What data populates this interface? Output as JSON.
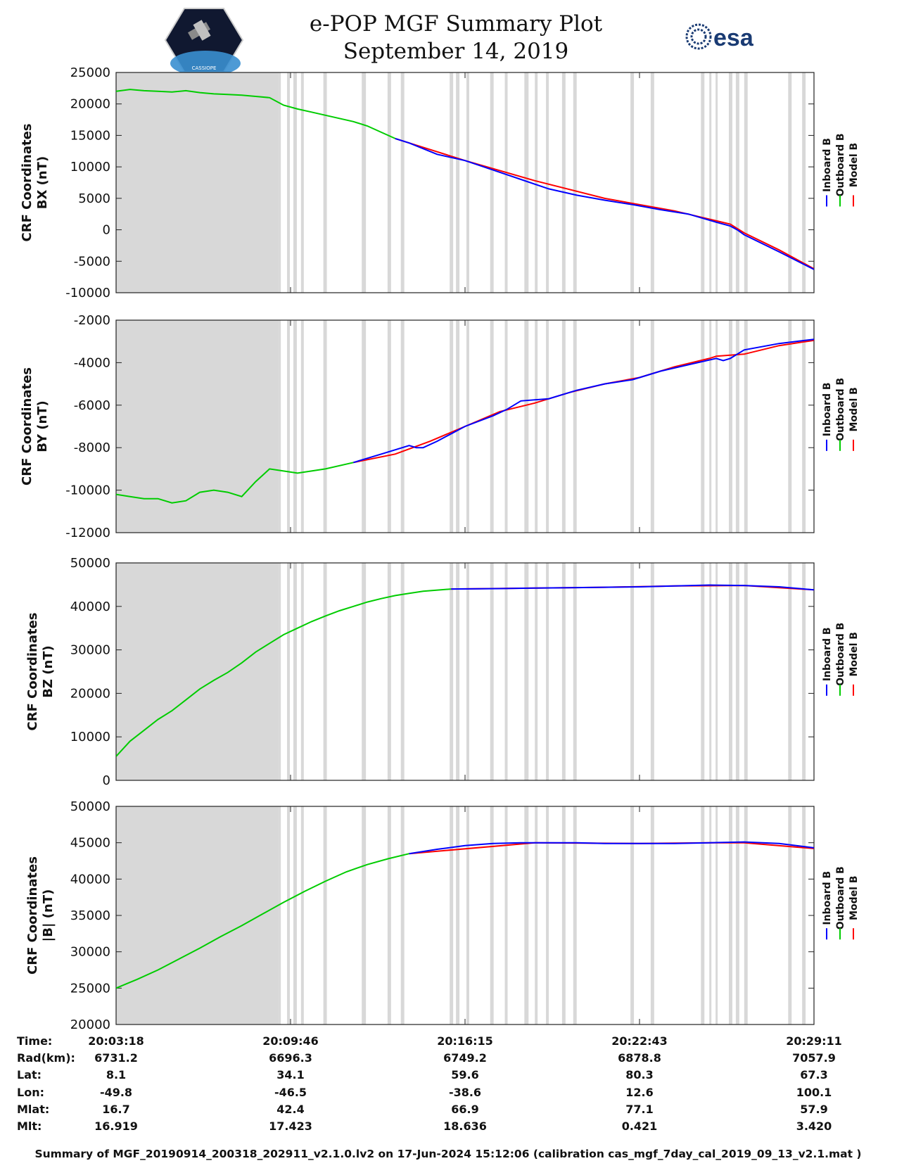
{
  "header": {
    "title_line1": "e-POP MGF Summary Plot",
    "title_line2": "September 14, 2019",
    "logo_left_text": "CASSIOPE",
    "logo_right_text": "esa"
  },
  "legend": {
    "labels": [
      "Inboard B",
      "Outboard B",
      "Model B"
    ],
    "colors": [
      "#0000ff",
      "#00cc00",
      "#ff0000"
    ]
  },
  "time_ticks": [
    "20:03:18",
    "20:09:46",
    "20:16:15",
    "20:22:43",
    "20:29:11"
  ],
  "gray_intervals": [
    [
      0,
      0.233
    ],
    [
      0.233,
      0.236
    ],
    [
      0.245,
      0.249
    ],
    [
      0.254,
      0.259
    ],
    [
      0.265,
      0.269
    ],
    [
      0.297,
      0.302
    ],
    [
      0.352,
      0.358
    ],
    [
      0.389,
      0.394
    ],
    [
      0.408,
      0.413
    ],
    [
      0.478,
      0.483
    ],
    [
      0.487,
      0.492
    ],
    [
      0.502,
      0.506
    ],
    [
      0.536,
      0.541
    ],
    [
      0.557,
      0.561
    ],
    [
      0.585,
      0.591
    ],
    [
      0.6,
      0.604
    ],
    [
      0.616,
      0.62
    ],
    [
      0.639,
      0.644
    ],
    [
      0.655,
      0.66
    ],
    [
      0.737,
      0.742
    ],
    [
      0.766,
      0.771
    ],
    [
      0.838,
      0.843
    ],
    [
      0.85,
      0.853
    ],
    [
      0.859,
      0.862
    ],
    [
      0.878,
      0.883
    ],
    [
      0.888,
      0.893
    ],
    [
      0.9,
      0.905
    ],
    [
      0.963,
      0.968
    ],
    [
      0.983,
      0.988
    ]
  ],
  "chart_data": [
    {
      "type": "line",
      "xlabel": "",
      "ylabel": "CRF Coordinates\nBX (nT)",
      "ylim": [
        -10000,
        25000
      ],
      "yticks": [
        "25000",
        "20000",
        "15000",
        "10000",
        "5000",
        "0",
        "-5000",
        "-10000"
      ],
      "series": [
        {
          "name": "Outboard B",
          "x_frac": [
            0,
            0.02,
            0.04,
            0.06,
            0.08,
            0.1,
            0.12,
            0.14,
            0.16,
            0.18,
            0.2,
            0.22,
            0.24,
            0.26,
            0.28,
            0.3,
            0.32,
            0.34,
            0.36,
            0.38,
            0.4
          ],
          "values": [
            22000,
            22300,
            22100,
            22000,
            21900,
            22100,
            21800,
            21600,
            21500,
            21400,
            21200,
            21000,
            19800,
            19200,
            18700,
            18200,
            17700,
            17200,
            16500,
            15500,
            14500
          ]
        },
        {
          "name": "Model B",
          "x_frac": [
            0.4,
            0.5,
            0.6,
            0.7,
            0.8,
            0.88,
            0.9,
            0.95,
            1.0
          ],
          "values": [
            14500,
            11000,
            7800,
            5000,
            3000,
            900,
            -500,
            -3200,
            -6200
          ]
        },
        {
          "name": "Inboard B",
          "x_frac": [
            0.4,
            0.42,
            0.46,
            0.5,
            0.54,
            0.58,
            0.62,
            0.66,
            0.7,
            0.74,
            0.78,
            0.82,
            0.86,
            0.88,
            0.89,
            0.9,
            0.95,
            1.0
          ],
          "values": [
            14500,
            13800,
            12000,
            11000,
            9500,
            8000,
            6500,
            5500,
            4700,
            4000,
            3200,
            2500,
            1200,
            600,
            0,
            -800,
            -3500,
            -6300
          ]
        }
      ]
    },
    {
      "type": "line",
      "xlabel": "",
      "ylabel": "CRF Coordinates\nBY (nT)",
      "ylim": [
        -12000,
        -2000
      ],
      "yticks": [
        "-2000",
        "-4000",
        "-6000",
        "-8000",
        "-10000",
        "-12000"
      ],
      "series": [
        {
          "name": "Outboard B",
          "x_frac": [
            0,
            0.02,
            0.04,
            0.06,
            0.08,
            0.1,
            0.12,
            0.14,
            0.16,
            0.18,
            0.2,
            0.22,
            0.24,
            0.26,
            0.28,
            0.3,
            0.34
          ],
          "values": [
            -10200,
            -10300,
            -10400,
            -10400,
            -10600,
            -10500,
            -10100,
            -10000,
            -10100,
            -10300,
            -9600,
            -9000,
            -9100,
            -9200,
            -9100,
            -9000,
            -8700
          ]
        },
        {
          "name": "Model B",
          "x_frac": [
            0.34,
            0.4,
            0.45,
            0.5,
            0.55,
            0.6,
            0.65,
            0.7,
            0.75,
            0.8,
            0.85,
            0.86,
            0.9,
            0.95,
            1.0
          ],
          "values": [
            -8700,
            -8300,
            -7700,
            -7000,
            -6300,
            -5900,
            -5400,
            -5000,
            -4700,
            -4200,
            -3800,
            -3700,
            -3600,
            -3200,
            -2950
          ]
        },
        {
          "name": "Inboard B",
          "x_frac": [
            0.34,
            0.38,
            0.42,
            0.43,
            0.44,
            0.46,
            0.5,
            0.54,
            0.56,
            0.58,
            0.62,
            0.66,
            0.7,
            0.74,
            0.78,
            0.82,
            0.86,
            0.87,
            0.88,
            0.9,
            0.95,
            1.0
          ],
          "values": [
            -8700,
            -8300,
            -7900,
            -8000,
            -8000,
            -7700,
            -7000,
            -6500,
            -6200,
            -5800,
            -5700,
            -5300,
            -5000,
            -4800,
            -4400,
            -4100,
            -3800,
            -3900,
            -3800,
            -3400,
            -3100,
            -2900
          ]
        }
      ]
    },
    {
      "type": "line",
      "xlabel": "",
      "ylabel": "CRF Coordinates\nBZ (nT)",
      "ylim": [
        0,
        50000
      ],
      "yticks": [
        "50000",
        "40000",
        "30000",
        "20000",
        "10000",
        "0"
      ],
      "series": [
        {
          "name": "Outboard B",
          "x_frac": [
            0,
            0.02,
            0.04,
            0.06,
            0.08,
            0.1,
            0.12,
            0.14,
            0.16,
            0.18,
            0.2,
            0.22,
            0.24,
            0.26,
            0.28,
            0.3,
            0.32,
            0.34,
            0.36,
            0.38,
            0.4,
            0.42,
            0.44,
            0.48
          ],
          "values": [
            5500,
            9000,
            11500,
            14000,
            16000,
            18500,
            21000,
            23000,
            24800,
            27000,
            29500,
            31500,
            33500,
            35000,
            36500,
            37800,
            39000,
            40000,
            41000,
            41800,
            42500,
            43000,
            43500,
            44000
          ]
        },
        {
          "name": "Model B",
          "x_frac": [
            0.48,
            0.6,
            0.7,
            0.8,
            0.9,
            1.0
          ],
          "values": [
            44000,
            44200,
            44400,
            44700,
            44800,
            43800
          ]
        },
        {
          "name": "Inboard B",
          "x_frac": [
            0.48,
            0.55,
            0.6,
            0.65,
            0.7,
            0.75,
            0.8,
            0.85,
            0.9,
            0.95,
            1.0
          ],
          "values": [
            44000,
            44100,
            44200,
            44300,
            44400,
            44500,
            44700,
            44900,
            44800,
            44500,
            43800
          ]
        }
      ]
    },
    {
      "type": "line",
      "xlabel": "",
      "ylabel": "CRF Coordinates\n|B| (nT)",
      "ylim": [
        20000,
        50000
      ],
      "yticks": [
        "50000",
        "45000",
        "40000",
        "35000",
        "30000",
        "25000",
        "20000"
      ],
      "series": [
        {
          "name": "Outboard B",
          "x_frac": [
            0,
            0.03,
            0.06,
            0.09,
            0.12,
            0.15,
            0.18,
            0.21,
            0.24,
            0.27,
            0.3,
            0.33,
            0.36,
            0.39,
            0.42
          ],
          "values": [
            25000,
            26200,
            27500,
            29000,
            30500,
            32100,
            33600,
            35200,
            36800,
            38300,
            39700,
            41000,
            42000,
            42800,
            43500
          ]
        },
        {
          "name": "Model B",
          "x_frac": [
            0.42,
            0.6,
            0.75,
            0.85,
            0.9,
            1.0
          ],
          "values": [
            43500,
            45000,
            44900,
            45000,
            45000,
            44200
          ]
        },
        {
          "name": "Inboard B",
          "x_frac": [
            0.42,
            0.46,
            0.5,
            0.54,
            0.58,
            0.62,
            0.66,
            0.7,
            0.75,
            0.8,
            0.85,
            0.9,
            0.95,
            1.0
          ],
          "values": [
            43500,
            44100,
            44600,
            44900,
            45000,
            45000,
            45000,
            44900,
            44900,
            44900,
            45000,
            45100,
            44900,
            44300
          ]
        }
      ]
    }
  ],
  "orbit_table": {
    "row_labels": [
      "Time:",
      "Rad(km):",
      "Lat:",
      "Lon:",
      "Mlat:",
      "Mlt:"
    ],
    "columns": [
      [
        "20:03:18",
        "6731.2",
        "8.1",
        "-49.8",
        "16.7",
        "16.919"
      ],
      [
        "20:09:46",
        "6696.3",
        "34.1",
        "-46.5",
        "42.4",
        "17.423"
      ],
      [
        "20:16:15",
        "6749.2",
        "59.6",
        "-38.6",
        "66.9",
        "18.636"
      ],
      [
        "20:22:43",
        "6878.8",
        "80.3",
        "12.6",
        "77.1",
        "0.421"
      ],
      [
        "20:29:11",
        "7057.9",
        "67.3",
        "100.1",
        "57.9",
        "3.420"
      ]
    ]
  },
  "footer": {
    "text": "Summary of MGF_20190914_200318_202911_v2.1.0.lv2 on 17-Jun-2024 15:12:06 (calibration cas_mgf_7day_cal_2019_09_13_v2.1.mat )"
  }
}
